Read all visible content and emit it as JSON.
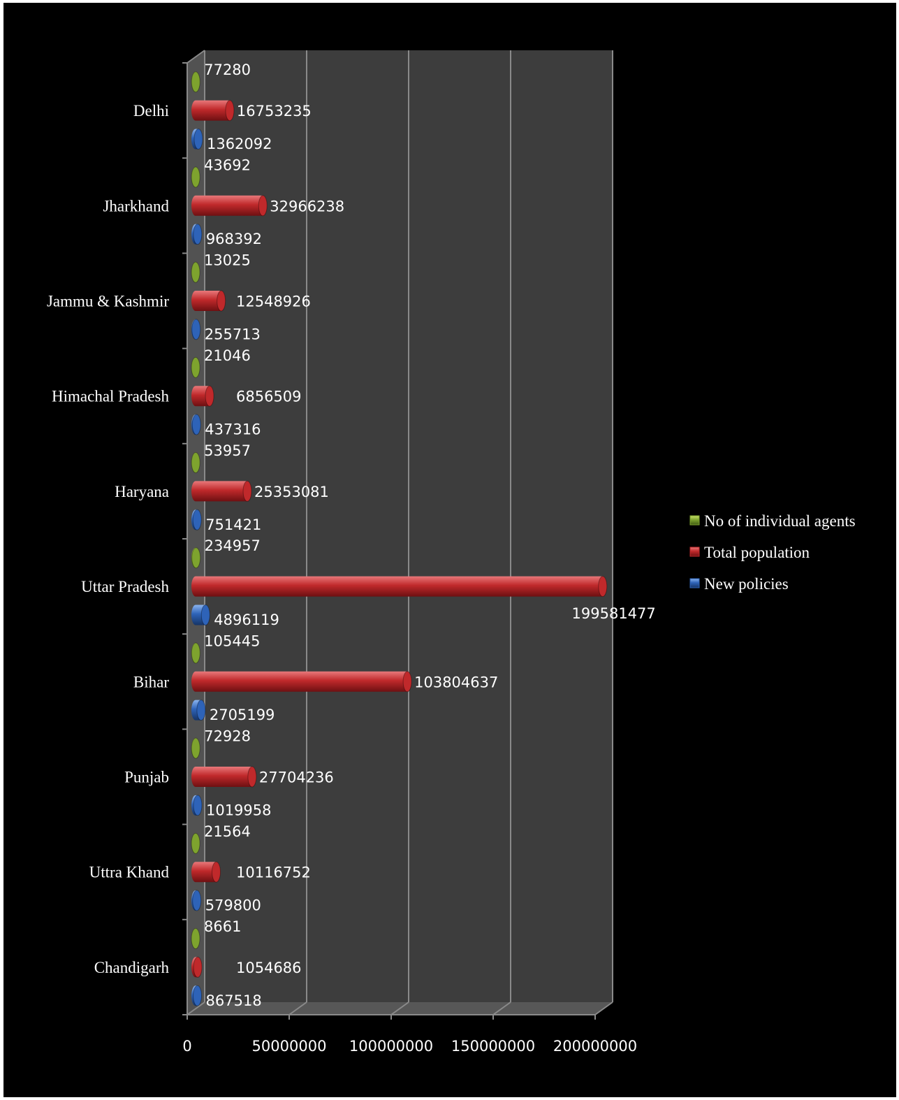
{
  "chart_data": {
    "type": "bar",
    "orientation": "horizontal",
    "three_d": true,
    "categories": [
      "Delhi",
      "Jharkhand",
      "Jammu & Kashmir",
      "Himachal Pradesh",
      "Haryana",
      "Uttar Pradesh",
      "Bihar",
      "Punjab",
      "Uttra Khand",
      "Chandigarh"
    ],
    "series": [
      {
        "name": "No of individual agents",
        "color": "#7ea32e",
        "values": [
          77280,
          43692,
          13025,
          21046,
          53957,
          234957,
          105445,
          72928,
          21564,
          8661
        ]
      },
      {
        "name": "Total population",
        "color": "#c0292b",
        "values": [
          16753235,
          32966238,
          12548926,
          6856509,
          25353081,
          199581477,
          103804637,
          27704236,
          10116752,
          1054686
        ]
      },
      {
        "name": "New policies",
        "color": "#2e63b8",
        "values": [
          1362092,
          968392,
          255713,
          437316,
          751421,
          4896119,
          2705199,
          1019958,
          579800,
          867518
        ]
      }
    ],
    "xlim": [
      0,
      200000000
    ],
    "xticks": [
      "0",
      "50000000",
      "100000000",
      "150000000",
      "200000000"
    ],
    "grid": true,
    "legend": "right",
    "data_labels": true
  }
}
